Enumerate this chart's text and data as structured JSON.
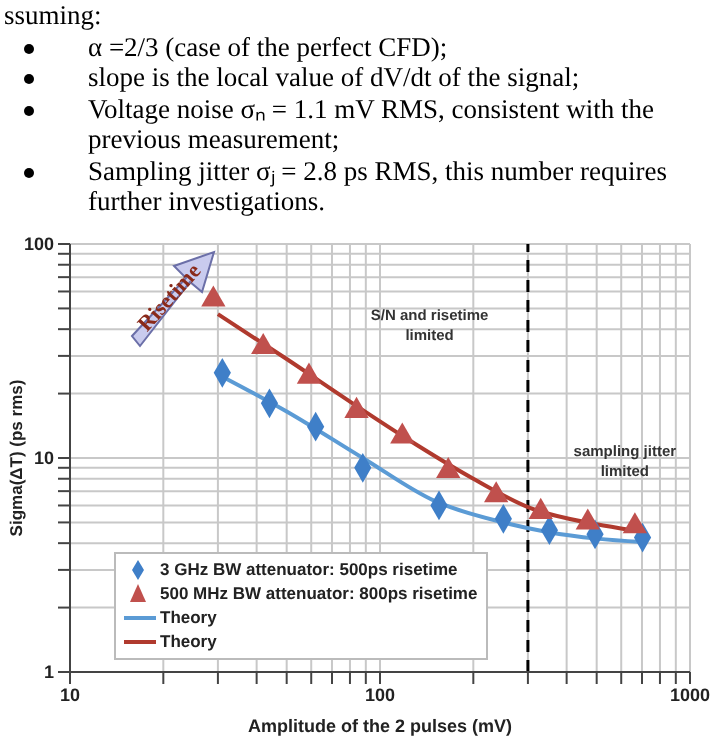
{
  "chart_data": {
    "type": "scatter",
    "title": "ssuming:",
    "annotations": [
      "α =2/3 (case of the perfect CFD);",
      "slope is the local value of dV/dt of the signal;",
      "Voltage noise σₙ = 1.1 mV RMS, consistent with the previous measurement;",
      "Sampling jitter σⱼ = 2.8 ps RMS, this number requires further investigations.",
      "Risetime",
      "S/N  and  risetime limited",
      "sampling jitter limited"
    ],
    "xlabel": "Amplitude of the 2 pulses (mV)",
    "ylabel": "Sigma(ΔT) (ps rms)",
    "log": "xy",
    "xlim": [
      10,
      1000
    ],
    "ylim": [
      1,
      100
    ],
    "xticks": [
      10,
      {
        "value": 20,
        "label": null
      },
      {
        "value": 30,
        "label": null
      },
      {
        "value": 40,
        "label": null
      },
      {
        "value": 50,
        "label": null
      },
      {
        "value": 60,
        "label": null
      },
      {
        "value": 70,
        "label": null
      },
      {
        "value": 80,
        "label": null
      },
      {
        "value": 90,
        "label": null
      },
      100,
      {
        "value": 200,
        "label": null
      },
      {
        "value": 300,
        "label": null
      },
      {
        "value": 400,
        "label": null
      },
      {
        "value": 500,
        "label": null
      },
      {
        "value": 600,
        "label": null
      },
      {
        "value": 700,
        "label": null
      },
      {
        "value": 800,
        "label": null
      },
      {
        "value": 900,
        "label": null
      },
      1000
    ],
    "yticks": [
      1,
      {
        "value": 2,
        "label": null
      },
      {
        "value": 3,
        "label": null
      },
      {
        "value": 4,
        "label": null
      },
      {
        "value": 5,
        "label": null
      },
      {
        "value": 6,
        "label": null
      },
      {
        "value": 7,
        "label": null
      },
      {
        "value": 8,
        "label": null
      },
      {
        "value": 9,
        "label": null
      },
      10,
      {
        "value": 20,
        "label": null
      },
      {
        "value": 30,
        "label": null
      },
      {
        "value": 40,
        "label": null
      },
      {
        "value": 50,
        "label": null
      },
      {
        "value": 60,
        "label": null
      },
      {
        "value": 70,
        "label": null
      },
      {
        "value": 80,
        "label": null
      },
      {
        "value": 90,
        "label": null
      },
      100
    ],
    "grid": true,
    "legend": "bottom left",
    "ref_lines": [
      {
        "axis": "x",
        "value": 300,
        "color": "#000000",
        "line_style": "dashed"
      }
    ],
    "series": [
      {
        "name": "3 GHz BW attenuator: 500ps risetime",
        "marker": "diamond",
        "color": "#3f7fc8",
        "x": [
          31,
          44,
          62,
          88,
          155,
          250,
          352,
          494,
          703
        ],
        "values": [
          25,
          18,
          14,
          9,
          6,
          5.2,
          4.6,
          4.4,
          4.25
        ]
      },
      {
        "name": "500 MHz BW attenuator: 800ps risetime",
        "marker": "triangle",
        "color": "#c0504d",
        "x": [
          29,
          42,
          59,
          84,
          118,
          166,
          237,
          330,
          468,
          664
        ],
        "values": [
          55,
          33,
          24,
          16.6,
          12.6,
          8.7,
          6.7,
          5.6,
          5,
          4.8
        ]
      },
      {
        "name": "Theory",
        "type": "line",
        "marker": "none",
        "line_style": "solid",
        "color": "#5b9bd5",
        "x": [
          31,
          50,
          88,
          150,
          250,
          350,
          500,
          700
        ],
        "values": [
          24,
          16.5,
          10,
          6.3,
          5,
          4.5,
          4.2,
          4.05
        ]
      },
      {
        "name": "Theory",
        "type": "line",
        "marker": "none",
        "line_style": "solid",
        "color": "#b03a2e",
        "x": [
          30,
          50,
          84,
          120,
          200,
          300,
          500,
          650
        ],
        "values": [
          47,
          29,
          17.5,
          12.5,
          8,
          5.9,
          4.9,
          4.6
        ]
      }
    ]
  }
}
